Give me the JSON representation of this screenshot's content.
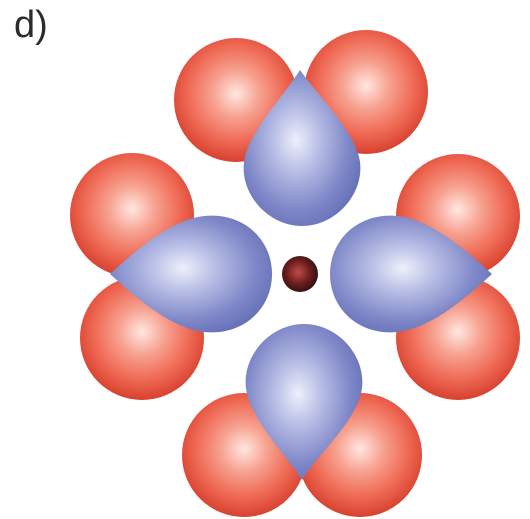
{
  "panel": {
    "label": "d)"
  },
  "colors": {
    "red_sphere": "#ef6a55",
    "red_sphere_light": "#ffe7e1",
    "red_sphere_dark": "#d8412f",
    "blue_lobe": "#5f6ab1",
    "blue_lobe_light": "#eef0fb",
    "center_sphere": "#6b1d1d"
  },
  "model": {
    "description_items": {
      "center_count": 1,
      "red_sphere_count": 8,
      "blue_lobe_count": 4
    }
  }
}
